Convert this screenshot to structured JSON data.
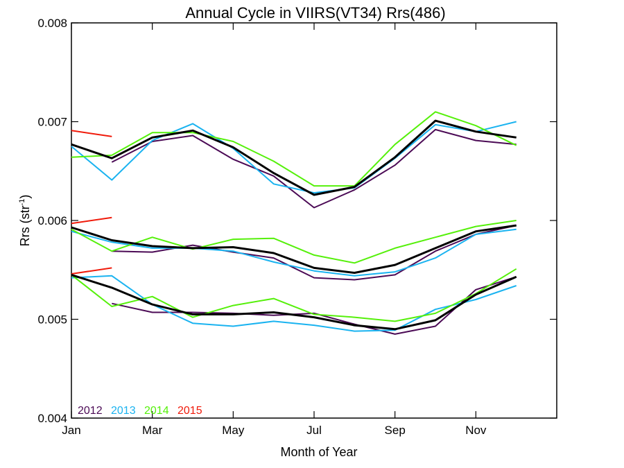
{
  "chart_data": {
    "type": "line",
    "title": "Annual Cycle in VIIRS(VT34) Rrs(486)",
    "xlabel": "Month of Year",
    "ylabel": "Rrs (str",
    "ylabel_sup": "-1",
    "ylabel_close": ")",
    "xlim": [
      1,
      13
    ],
    "ylim": [
      0.004,
      0.008
    ],
    "x_ticks": [
      {
        "value": 1,
        "label": "Jan"
      },
      {
        "value": 3,
        "label": "Mar"
      },
      {
        "value": 5,
        "label": "May"
      },
      {
        "value": 7,
        "label": "Jul"
      },
      {
        "value": 9,
        "label": "Sep"
      },
      {
        "value": 11,
        "label": "Nov"
      }
    ],
    "y_ticks": [
      {
        "value": 0.004,
        "label": "0.004"
      },
      {
        "value": 0.005,
        "label": "0.005"
      },
      {
        "value": 0.006,
        "label": "0.006"
      },
      {
        "value": 0.007,
        "label": "0.007"
      },
      {
        "value": 0.008,
        "label": "0.008"
      }
    ],
    "legend": [
      {
        "label": "2012",
        "color": "#4b0a55"
      },
      {
        "label": "2013",
        "color": "#1ab3f0"
      },
      {
        "label": "2014",
        "color": "#55f00a"
      },
      {
        "label": "2015",
        "color": "#f01a0a"
      }
    ],
    "legend_position": "bottom-left",
    "grid": false,
    "series": [
      {
        "group": "upper",
        "year": "2012",
        "color": "#4b0a55",
        "width": 2,
        "x": [
          2.0,
          3.0,
          4.0,
          5.0,
          6.0,
          7.0,
          8.0,
          9.0,
          10.0,
          11.0,
          12.0
        ],
        "y": [
          0.00659,
          0.0068,
          0.00686,
          0.00662,
          0.00645,
          0.00613,
          0.00631,
          0.00656,
          0.00692,
          0.00681,
          0.00677
        ]
      },
      {
        "group": "upper",
        "year": "2013",
        "color": "#1ab3f0",
        "width": 2,
        "x": [
          1.0,
          2.0,
          3.0,
          4.0,
          5.0,
          6.0,
          7.0,
          8.0,
          9.0,
          10.0,
          11.0,
          12.0
        ],
        "y": [
          0.00675,
          0.00641,
          0.00681,
          0.00698,
          0.00673,
          0.00637,
          0.00628,
          0.00633,
          0.00663,
          0.00697,
          0.0069,
          0.007
        ]
      },
      {
        "group": "upper",
        "year": "2014",
        "color": "#55f00a",
        "width": 2,
        "x": [
          1.0,
          2.0,
          3.0,
          4.0,
          5.0,
          6.0,
          7.0,
          8.0,
          9.0,
          10.0,
          11.0,
          12.0
        ],
        "y": [
          0.00664,
          0.00666,
          0.00689,
          0.00689,
          0.0068,
          0.0066,
          0.00635,
          0.00635,
          0.00677,
          0.0071,
          0.00696,
          0.00676
        ]
      },
      {
        "group": "upper",
        "year": "2015",
        "color": "#f01a0a",
        "width": 2,
        "x": [
          1.0,
          2.0
        ],
        "y": [
          0.00691,
          0.00685
        ]
      },
      {
        "group": "upper",
        "year": "mean",
        "color": "#000000",
        "width": 3,
        "x": [
          1.0,
          2.0,
          3.0,
          4.0,
          5.0,
          6.0,
          7.0,
          8.0,
          9.0,
          10.0,
          11.0,
          12.0
        ],
        "y": [
          0.00677,
          0.00663,
          0.00684,
          0.00691,
          0.00674,
          0.00648,
          0.00626,
          0.00634,
          0.00664,
          0.00701,
          0.0069,
          0.00684
        ]
      },
      {
        "group": "middle",
        "year": "2012",
        "color": "#4b0a55",
        "width": 2,
        "x": [
          2.0,
          3.0,
          4.0,
          5.0,
          6.0,
          7.0,
          8.0,
          9.0,
          10.0,
          11.0,
          12.0
        ],
        "y": [
          0.00569,
          0.00568,
          0.00575,
          0.00568,
          0.00562,
          0.00542,
          0.0054,
          0.00545,
          0.00569,
          0.00586,
          0.00595
        ]
      },
      {
        "group": "middle",
        "year": "2013",
        "color": "#1ab3f0",
        "width": 2,
        "x": [
          1.0,
          2.0,
          3.0,
          4.0,
          5.0,
          6.0,
          7.0,
          8.0,
          9.0,
          10.0,
          11.0,
          12.0
        ],
        "y": [
          0.00589,
          0.00578,
          0.00572,
          0.00572,
          0.00569,
          0.00558,
          0.00549,
          0.00544,
          0.00548,
          0.00562,
          0.00586,
          0.00591
        ]
      },
      {
        "group": "middle",
        "year": "2014",
        "color": "#55f00a",
        "width": 2,
        "x": [
          1.0,
          2.0,
          3.0,
          4.0,
          5.0,
          6.0,
          7.0,
          8.0,
          9.0,
          10.0,
          11.0,
          12.0
        ],
        "y": [
          0.00591,
          0.00569,
          0.00583,
          0.00571,
          0.00581,
          0.00582,
          0.00565,
          0.00557,
          0.00572,
          0.00583,
          0.00594,
          0.006
        ]
      },
      {
        "group": "middle",
        "year": "2015",
        "color": "#f01a0a",
        "width": 2,
        "x": [
          1.0,
          2.0
        ],
        "y": [
          0.00597,
          0.00603
        ]
      },
      {
        "group": "middle",
        "year": "mean",
        "color": "#000000",
        "width": 3,
        "x": [
          1.0,
          2.0,
          3.0,
          4.0,
          5.0,
          6.0,
          7.0,
          8.0,
          9.0,
          10.0,
          11.0,
          12.0
        ],
        "y": [
          0.00593,
          0.0058,
          0.00574,
          0.00572,
          0.00573,
          0.00567,
          0.00552,
          0.00547,
          0.00555,
          0.00572,
          0.00589,
          0.00595
        ]
      },
      {
        "group": "lower",
        "year": "2012",
        "color": "#4b0a55",
        "width": 2,
        "x": [
          2.0,
          3.0,
          4.0,
          5.0,
          6.0,
          7.0,
          8.0,
          9.0,
          10.0,
          11.0,
          12.0
        ],
        "y": [
          0.00516,
          0.00507,
          0.00507,
          0.00506,
          0.00504,
          0.00506,
          0.00495,
          0.00485,
          0.00493,
          0.0053,
          0.00543
        ]
      },
      {
        "group": "lower",
        "year": "2013",
        "color": "#1ab3f0",
        "width": 2,
        "x": [
          1.0,
          2.0,
          3.0,
          4.0,
          5.0,
          6.0,
          7.0,
          8.0,
          9.0,
          10.0,
          11.0,
          12.0
        ],
        "y": [
          0.00542,
          0.00544,
          0.00515,
          0.00496,
          0.00493,
          0.00498,
          0.00494,
          0.00488,
          0.00489,
          0.0051,
          0.0052,
          0.00534
        ]
      },
      {
        "group": "lower",
        "year": "2014",
        "color": "#55f00a",
        "width": 2,
        "x": [
          1.0,
          2.0,
          3.0,
          4.0,
          5.0,
          6.0,
          7.0,
          8.0,
          9.0,
          10.0,
          11.0,
          12.0
        ],
        "y": [
          0.00545,
          0.00513,
          0.00523,
          0.00502,
          0.00514,
          0.00521,
          0.00505,
          0.00502,
          0.00498,
          0.00506,
          0.00526,
          0.00551
        ]
      },
      {
        "group": "lower",
        "year": "2015",
        "color": "#f01a0a",
        "width": 2,
        "x": [
          1.0,
          2.0
        ],
        "y": [
          0.00546,
          0.00552
        ]
      },
      {
        "group": "lower",
        "year": "mean",
        "color": "#000000",
        "width": 3,
        "x": [
          1.0,
          2.0,
          3.0,
          4.0,
          5.0,
          6.0,
          7.0,
          8.0,
          9.0,
          10.0,
          11.0,
          12.0
        ],
        "y": [
          0.00545,
          0.00532,
          0.00515,
          0.00505,
          0.00505,
          0.00507,
          0.00502,
          0.00494,
          0.0049,
          0.00499,
          0.00525,
          0.00543
        ]
      }
    ]
  }
}
